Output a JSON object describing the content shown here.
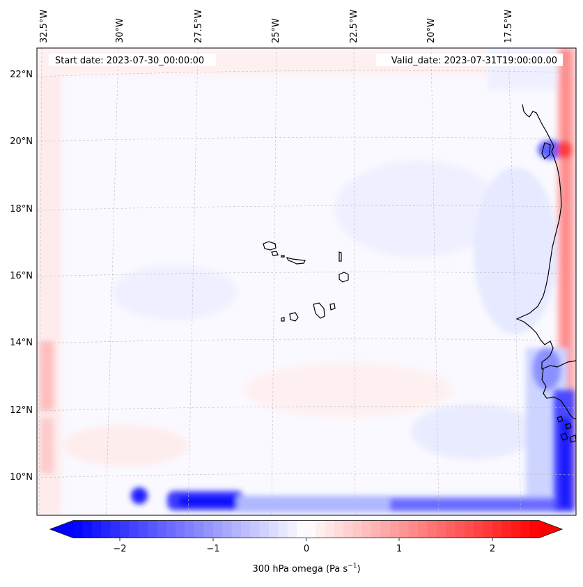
{
  "figure": {
    "start_date_label": "Start date: 2023-07-30_00:00:00",
    "valid_date_label": "Valid_date: 2023-07-31T19:00:00.00"
  },
  "lon_ticks": [
    "32.5°W",
    "30°W",
    "27.5°W",
    "25°W",
    "22.5°W",
    "20°W",
    "17.5°W"
  ],
  "lat_ticks": [
    "22°N",
    "20°N",
    "18°N",
    "16°N",
    "14°N",
    "12°N",
    "10°N"
  ],
  "colorbar": {
    "ticks": [
      "−2",
      "−1",
      "0",
      "1",
      "2"
    ],
    "label": "300 hPa omega (Pa s",
    "label_sup": "−1",
    "label_close": ")",
    "min": -2.5,
    "max": 2.5,
    "step": 0.1
  },
  "colors": {
    "negative": "#0000ff",
    "neutral": "#ffffff",
    "positive": "#ff0000",
    "coast": "#000000",
    "grid": "#bbbbbb"
  }
}
